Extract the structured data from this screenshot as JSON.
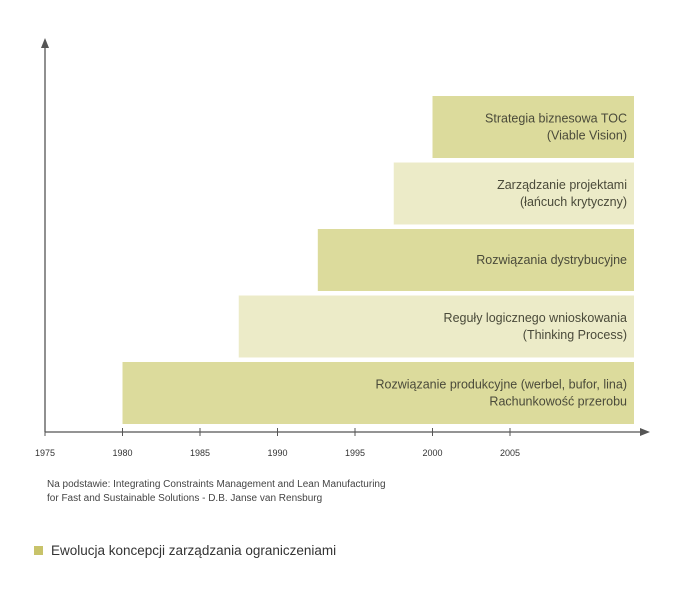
{
  "chart_data": {
    "type": "bar",
    "orientation": "horizontal-timeline",
    "xlim": [
      1975,
      2013
    ],
    "x_ticks": [
      "1975",
      "1980",
      "1985",
      "1990",
      "1995",
      "2000",
      "2005"
    ],
    "bars": [
      {
        "start": 1980,
        "lines": [
          "Rozwiązanie produkcyjne (werbel, bufor, lina)",
          "Rachunkowość przerobu"
        ],
        "shade": "dark"
      },
      {
        "start": 1987.5,
        "lines": [
          "Reguły logicznego wnioskowania",
          "(Thinking Process)"
        ],
        "shade": "light"
      },
      {
        "start": 1992.6,
        "lines": [
          "Rozwiązania dystrybucyjne"
        ],
        "shade": "dark"
      },
      {
        "start": 1997.5,
        "lines": [
          "Zarządzanie projektami",
          "(łańcuch krytyczny)"
        ],
        "shade": "light"
      },
      {
        "start": 2000,
        "lines": [
          "Strategia biznesowa TOC",
          "(Viable Vision)"
        ],
        "shade": "dark"
      }
    ],
    "bar_end": 2013,
    "colors": {
      "dark": "#dcdb9c",
      "light": "#ecebc8",
      "axis": "#555555",
      "caption_marker": "#c8c36a"
    }
  },
  "source_note": [
    "Na podstawie: Integrating Constraints Management and Lean Manufacturing",
    "for Fast and Sustainable Solutions - D.B. Janse van Rensburg"
  ],
  "caption": "Ewolucja koncepcji zarządzania ograniczeniami"
}
